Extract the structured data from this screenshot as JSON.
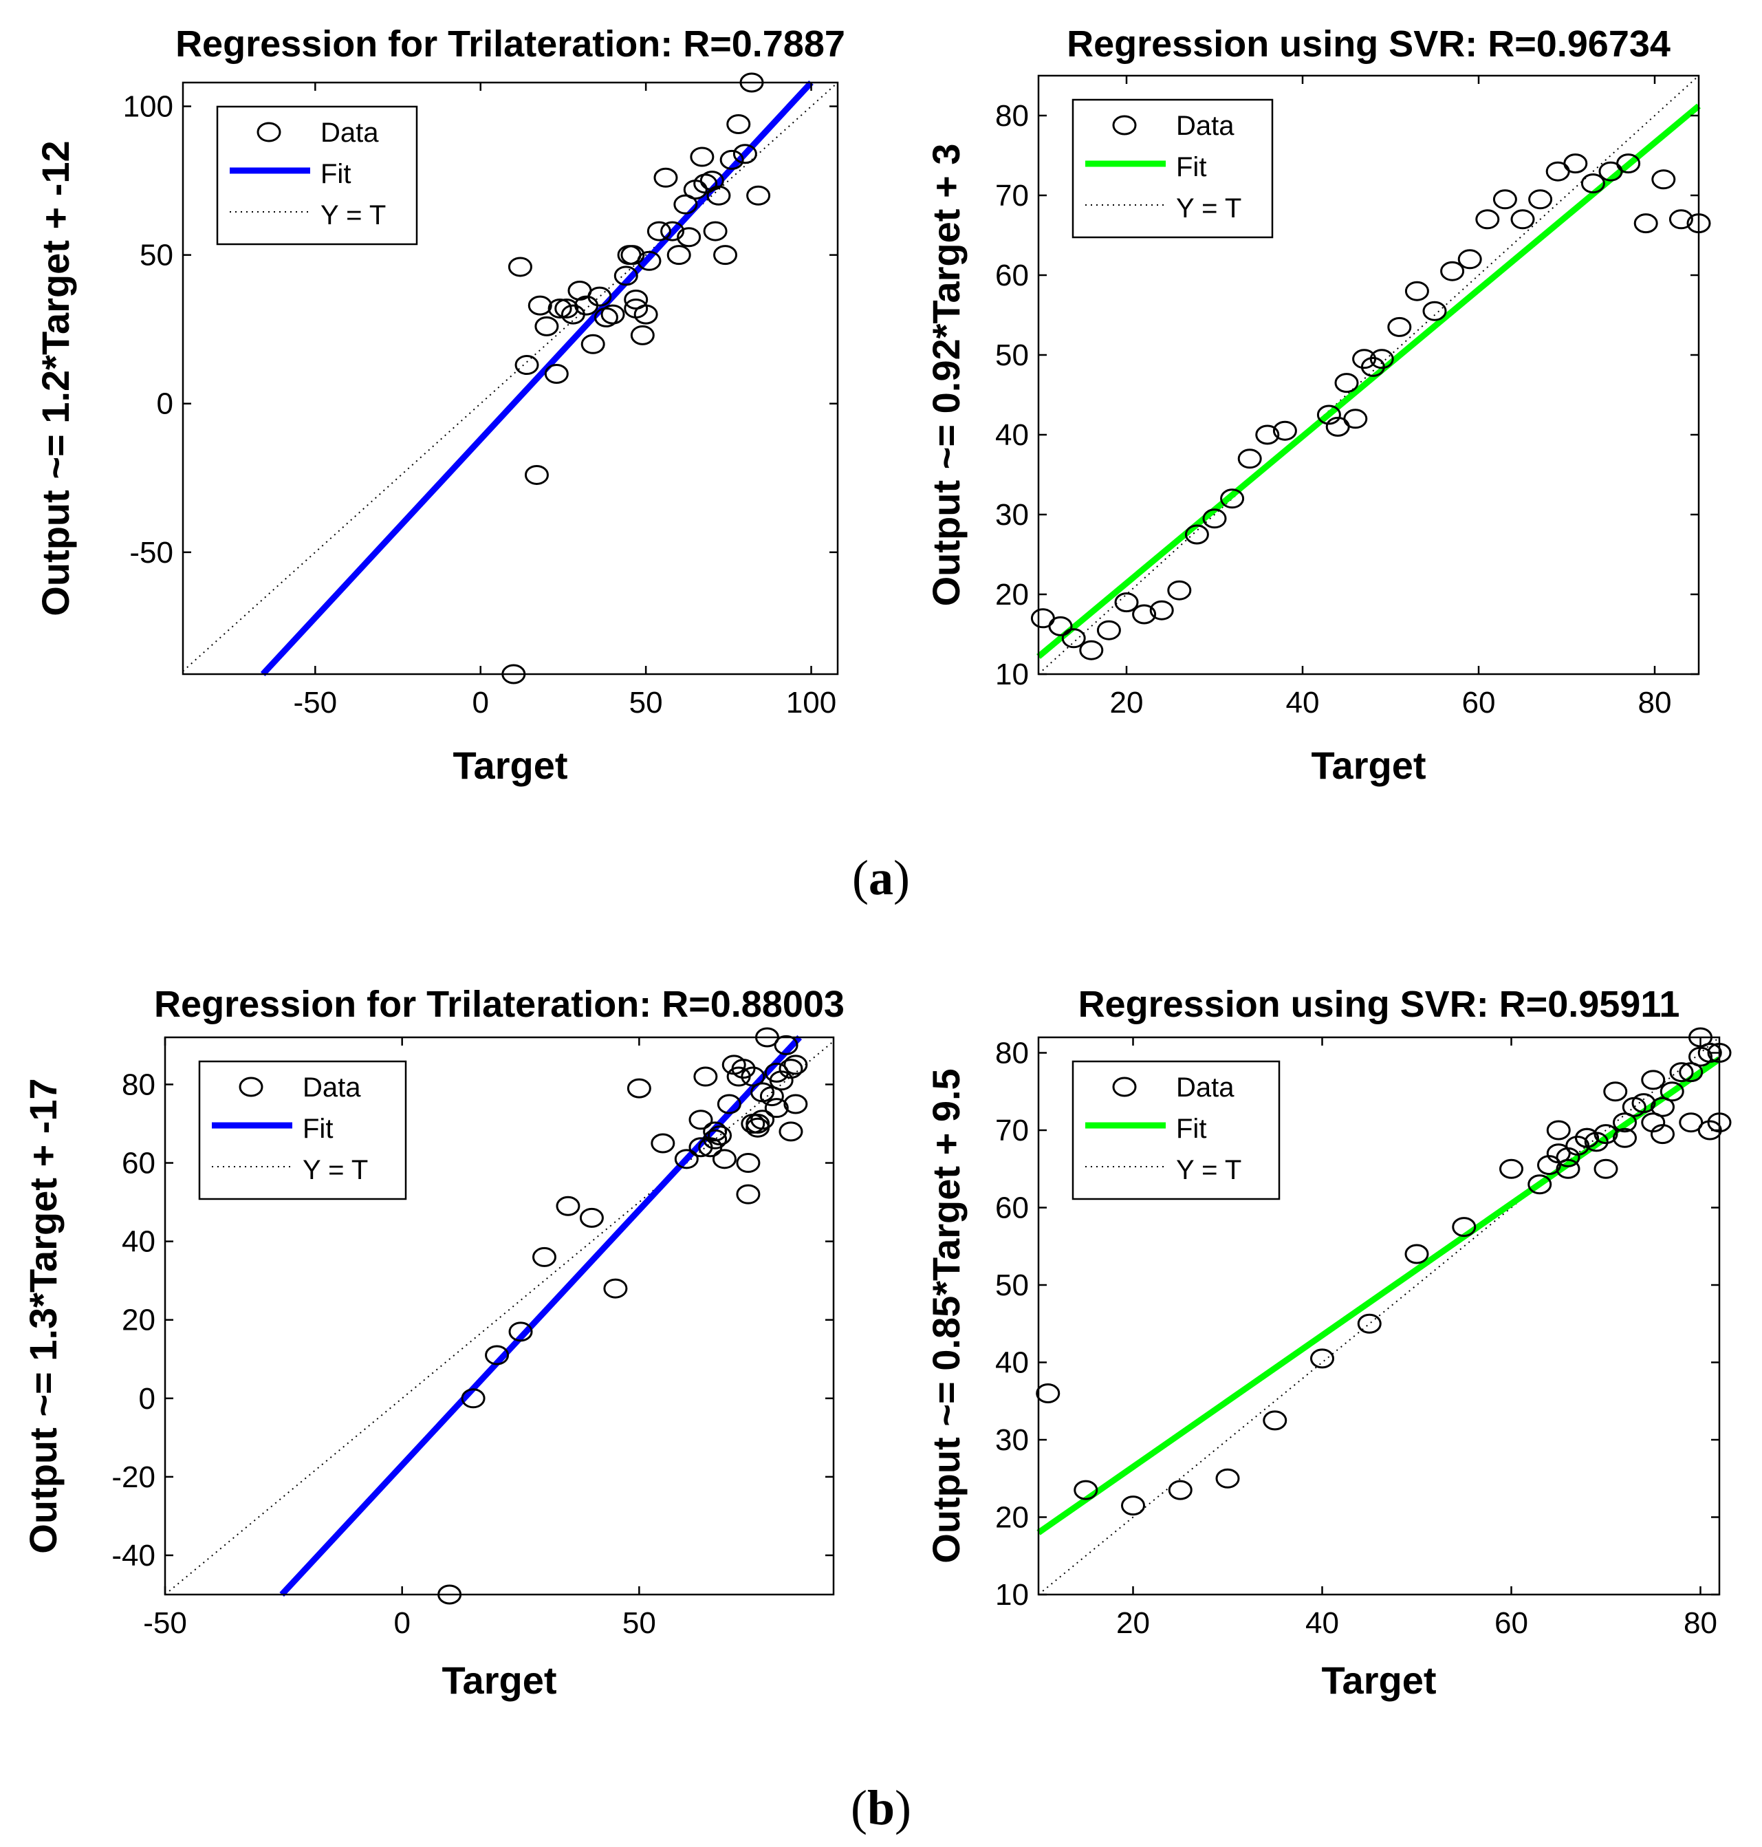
{
  "figure": {
    "caption_a": "a",
    "caption_b": "b"
  },
  "chart_data": [
    {
      "type": "scatter",
      "panel": "a-left",
      "title": "Regression for Trilateration: R=0.7887",
      "xlabel": "Target",
      "ylabel": "Output ~= 1.2*Target + -12",
      "xlim": [
        -90,
        108
      ],
      "ylim": [
        -91,
        108
      ],
      "xticks": [
        -50,
        0,
        50,
        100
      ],
      "yticks": [
        -50,
        0,
        50,
        100
      ],
      "fit": {
        "slope": 1.2,
        "intercept": -12,
        "color": "#0000ff"
      },
      "legend": [
        "Data",
        "Fit",
        "Y = T"
      ],
      "points": [
        [
          12,
          46
        ],
        [
          14,
          13
        ],
        [
          17,
          -24
        ],
        [
          18,
          33
        ],
        [
          20,
          26
        ],
        [
          23,
          10
        ],
        [
          24,
          32
        ],
        [
          26,
          32
        ],
        [
          28,
          30
        ],
        [
          30,
          38
        ],
        [
          32,
          33
        ],
        [
          34,
          20
        ],
        [
          36,
          36
        ],
        [
          38,
          29
        ],
        [
          40,
          30
        ],
        [
          44,
          43
        ],
        [
          45,
          50
        ],
        [
          46,
          50
        ],
        [
          47,
          35
        ],
        [
          47,
          32
        ],
        [
          49,
          23
        ],
        [
          50,
          30
        ],
        [
          51,
          48
        ],
        [
          54,
          58
        ],
        [
          56,
          76
        ],
        [
          58,
          58
        ],
        [
          60,
          50
        ],
        [
          62,
          67
        ],
        [
          63,
          56
        ],
        [
          65,
          72
        ],
        [
          67,
          83
        ],
        [
          68,
          74
        ],
        [
          70,
          75
        ],
        [
          71,
          58
        ],
        [
          72,
          70
        ],
        [
          74,
          50
        ],
        [
          76,
          82
        ],
        [
          78,
          94
        ],
        [
          80,
          84
        ],
        [
          82,
          108
        ],
        [
          84,
          70
        ],
        [
          10,
          -91
        ]
      ]
    },
    {
      "type": "scatter",
      "panel": "a-right",
      "title": "Regression using SVR: R=0.96734",
      "xlabel": "Target",
      "ylabel": "Output ~= 0.92*Target + 3",
      "xlim": [
        10,
        85
      ],
      "ylim": [
        10,
        85
      ],
      "xticks": [
        20,
        40,
        60,
        80
      ],
      "yticks": [
        10,
        20,
        30,
        40,
        50,
        60,
        70,
        80
      ],
      "fit": {
        "slope": 0.92,
        "intercept": 3,
        "color": "#00ff00"
      },
      "legend": [
        "Data",
        "Fit",
        "Y = T"
      ],
      "points": [
        [
          10.5,
          17
        ],
        [
          12.5,
          16
        ],
        [
          14,
          14.5
        ],
        [
          16,
          13
        ],
        [
          18,
          15.5
        ],
        [
          20,
          19
        ],
        [
          22,
          17.5
        ],
        [
          24,
          18
        ],
        [
          26,
          20.5
        ],
        [
          28,
          27.5
        ],
        [
          30,
          29.5
        ],
        [
          32,
          32
        ],
        [
          34,
          37
        ],
        [
          36,
          40
        ],
        [
          38,
          40.5
        ],
        [
          43,
          42.5
        ],
        [
          44,
          41
        ],
        [
          45,
          46.5
        ],
        [
          46,
          42
        ],
        [
          47,
          49.5
        ],
        [
          48,
          48.5
        ],
        [
          49,
          49.5
        ],
        [
          51,
          53.5
        ],
        [
          53,
          58
        ],
        [
          55,
          55.5
        ],
        [
          57,
          60.5
        ],
        [
          59,
          62
        ],
        [
          61,
          67
        ],
        [
          63,
          69.5
        ],
        [
          65,
          67
        ],
        [
          67,
          69.5
        ],
        [
          69,
          73
        ],
        [
          71,
          74
        ],
        [
          73,
          71.5
        ],
        [
          75,
          73
        ],
        [
          77,
          74
        ],
        [
          79,
          66.5
        ],
        [
          81,
          72
        ],
        [
          83,
          67
        ],
        [
          85,
          66.5
        ]
      ]
    },
    {
      "type": "scatter",
      "panel": "b-left",
      "title": "Regression for Trilateration: R=0.88003",
      "xlabel": "Target",
      "ylabel": "Output ~= 1.3*Target + -17",
      "xlim": [
        -50,
        91
      ],
      "ylim": [
        -50,
        92
      ],
      "xticks": [
        -50,
        0,
        50
      ],
      "yticks": [
        -40,
        -20,
        0,
        20,
        40,
        60,
        80
      ],
      "fit": {
        "slope": 1.3,
        "intercept": -17,
        "color": "#0000ff"
      },
      "legend": [
        "Data",
        "Fit",
        "Y = T"
      ],
      "points": [
        [
          10,
          -50
        ],
        [
          15,
          0
        ],
        [
          20,
          11
        ],
        [
          25,
          17
        ],
        [
          30,
          36
        ],
        [
          35,
          49
        ],
        [
          40,
          46
        ],
        [
          45,
          28
        ],
        [
          50,
          79
        ],
        [
          55,
          65
        ],
        [
          60,
          61
        ],
        [
          63,
          64
        ],
        [
          63,
          71
        ],
        [
          64,
          82
        ],
        [
          65,
          64
        ],
        [
          66,
          66
        ],
        [
          66,
          68
        ],
        [
          67,
          67
        ],
        [
          68,
          61
        ],
        [
          69,
          75
        ],
        [
          70,
          85
        ],
        [
          71,
          82
        ],
        [
          72,
          84
        ],
        [
          73,
          52
        ],
        [
          73,
          60
        ],
        [
          74,
          70
        ],
        [
          74,
          82
        ],
        [
          75,
          69
        ],
        [
          75,
          70
        ],
        [
          76,
          71
        ],
        [
          76,
          78
        ],
        [
          77,
          92
        ],
        [
          78,
          77
        ],
        [
          79,
          83
        ],
        [
          79,
          74
        ],
        [
          80,
          81
        ],
        [
          81,
          90
        ],
        [
          82,
          84
        ],
        [
          82,
          68
        ],
        [
          83,
          75
        ],
        [
          83,
          85
        ]
      ]
    },
    {
      "type": "scatter",
      "panel": "b-right",
      "title": "Regression using SVR: R=0.95911",
      "xlabel": "Target",
      "ylabel": "Output ~= 0.85*Target + 9.5",
      "xlim": [
        10,
        82
      ],
      "ylim": [
        10,
        82
      ],
      "xticks": [
        20,
        40,
        60,
        80
      ],
      "yticks": [
        10,
        20,
        30,
        40,
        50,
        60,
        70,
        80
      ],
      "fit": {
        "slope": 0.85,
        "intercept": 9.5,
        "color": "#00ff00"
      },
      "legend": [
        "Data",
        "Fit",
        "Y = T"
      ],
      "points": [
        [
          11,
          36
        ],
        [
          15,
          23.5
        ],
        [
          20,
          21.5
        ],
        [
          25,
          23.5
        ],
        [
          30,
          25
        ],
        [
          35,
          32.5
        ],
        [
          40,
          40.5
        ],
        [
          45,
          45
        ],
        [
          50,
          54
        ],
        [
          55,
          57.5
        ],
        [
          60,
          65
        ],
        [
          63,
          63
        ],
        [
          64,
          65.5
        ],
        [
          65,
          67
        ],
        [
          65,
          70
        ],
        [
          66,
          65
        ],
        [
          66,
          66.5
        ],
        [
          67,
          68
        ],
        [
          68,
          69
        ],
        [
          68,
          69
        ],
        [
          69,
          68.5
        ],
        [
          70,
          69.5
        ],
        [
          70,
          65
        ],
        [
          71,
          75
        ],
        [
          72,
          71
        ],
        [
          72,
          69
        ],
        [
          73,
          73
        ],
        [
          74,
          73.5
        ],
        [
          75,
          71
        ],
        [
          75,
          76.5
        ],
        [
          76,
          73
        ],
        [
          76,
          69.5
        ],
        [
          77,
          75
        ],
        [
          78,
          77.5
        ],
        [
          79,
          77.5
        ],
        [
          79,
          71
        ],
        [
          80,
          82
        ],
        [
          80,
          79.5
        ],
        [
          81,
          70
        ],
        [
          81,
          80
        ],
        [
          82,
          71
        ],
        [
          82,
          80
        ]
      ]
    }
  ]
}
